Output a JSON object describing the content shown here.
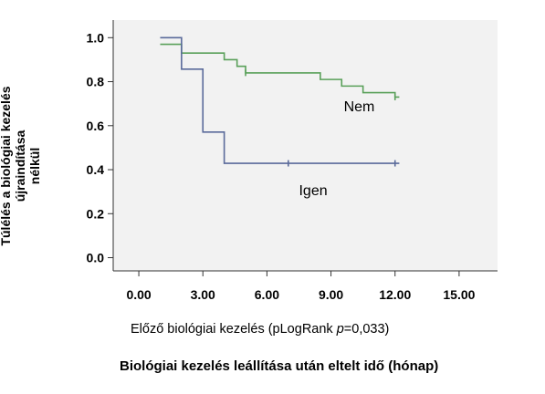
{
  "chart_data": {
    "type": "line",
    "subtype": "kaplan-meier",
    "ylabel_line1": "Túlélés a biológiai kezelés újraindítása",
    "ylabel_line2": "nélkül",
    "xlabel": "Biológiai kezelés leállítása után eltelt idő (hónap)",
    "subtitle_prefix": "Előző biológiai kezelés (pLogRank ",
    "subtitle_p": "p",
    "subtitle_suffix": "=0,033)",
    "xlim": [
      -1.2,
      16.8
    ],
    "ylim": [
      -0.06,
      1.08
    ],
    "xticks": [
      "0.00",
      "3.00",
      "6.00",
      "9.00",
      "12.00",
      "15.00"
    ],
    "xtick_values": [
      0,
      3,
      6,
      9,
      12,
      15
    ],
    "yticks": [
      "0.0",
      "0.2",
      "0.4",
      "0.6",
      "0.8",
      "1.0"
    ],
    "ytick_values": [
      0,
      0.2,
      0.4,
      0.6,
      0.8,
      1.0
    ],
    "grid": false,
    "series": [
      {
        "name": "Nem",
        "color": "#5aa05a",
        "steps": [
          [
            1,
            0.97
          ],
          [
            2,
            0.93
          ],
          [
            4,
            0.9
          ],
          [
            4.6,
            0.87
          ],
          [
            5,
            0.84
          ],
          [
            8.5,
            0.81
          ],
          [
            9.5,
            0.78
          ],
          [
            10.5,
            0.75
          ],
          [
            12,
            0.73
          ],
          [
            12.2,
            0.73
          ]
        ],
        "censored": [
          [
            5,
            0.84
          ],
          [
            12,
            0.73
          ]
        ]
      },
      {
        "name": "Igen",
        "color": "#5a6a9a",
        "steps": [
          [
            1,
            1.0
          ],
          [
            2,
            0.857
          ],
          [
            3,
            0.571
          ],
          [
            4,
            0.429
          ],
          [
            12.2,
            0.429
          ]
        ],
        "censored": [
          [
            7,
            0.429
          ],
          [
            12,
            0.429
          ]
        ]
      }
    ]
  }
}
